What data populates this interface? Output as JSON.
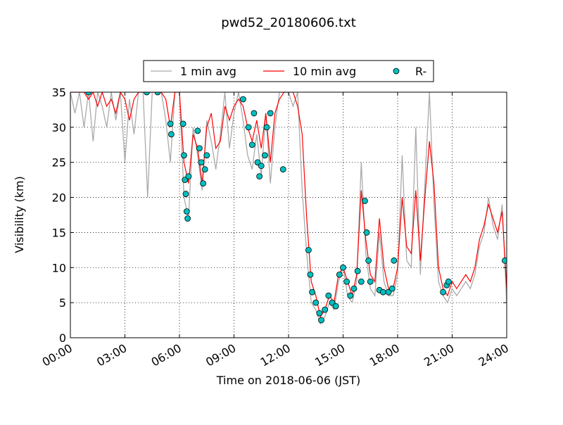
{
  "chart_data": {
    "type": "line",
    "title": "pwd52_20180606.txt",
    "x_label": "Time on 2018-06-06 (JST)",
    "y_label": "Visibility (km)",
    "xlim": [
      0,
      24
    ],
    "ylim": [
      0,
      35
    ],
    "xticks": [
      {
        "value": 0,
        "label": "00:00"
      },
      {
        "value": 3,
        "label": "03:00"
      },
      {
        "value": 6,
        "label": "06:00"
      },
      {
        "value": 9,
        "label": "09:00"
      },
      {
        "value": 12,
        "label": "12:00"
      },
      {
        "value": 15,
        "label": "15:00"
      },
      {
        "value": 18,
        "label": "18:00"
      },
      {
        "value": 21,
        "label": "21:00"
      },
      {
        "value": 24,
        "label": "24:00"
      }
    ],
    "yticks": [
      0,
      5,
      10,
      15,
      20,
      25,
      30,
      35
    ],
    "grid": true,
    "legend": "top-center-outside",
    "series": [
      {
        "name": "1 min avg",
        "type": "line",
        "color": "#aaaaaa",
        "x": [
          0,
          0.25,
          0.5,
          0.75,
          1,
          1.25,
          1.5,
          1.75,
          2,
          2.25,
          2.5,
          2.75,
          3,
          3.25,
          3.5,
          3.75,
          4,
          4.25,
          4.5,
          4.75,
          5,
          5.25,
          5.5,
          5.75,
          6,
          6.25,
          6.5,
          6.75,
          7,
          7.25,
          7.5,
          7.75,
          8,
          8.25,
          8.5,
          8.75,
          9,
          9.25,
          9.5,
          9.75,
          10,
          10.25,
          10.5,
          10.75,
          11,
          11.25,
          11.5,
          11.75,
          12,
          12.25,
          12.5,
          12.75,
          13,
          13.25,
          13.5,
          13.75,
          14,
          14.25,
          14.5,
          14.75,
          15,
          15.25,
          15.5,
          15.75,
          16,
          16.25,
          16.5,
          16.75,
          17,
          17.25,
          17.5,
          17.75,
          18,
          18.25,
          18.5,
          18.75,
          19,
          19.25,
          19.5,
          19.75,
          20,
          20.25,
          20.5,
          20.75,
          21,
          21.25,
          21.5,
          21.75,
          22,
          22.25,
          22.5,
          22.75,
          23,
          23.25,
          23.5,
          23.75,
          24
        ],
        "values": [
          35,
          32,
          35,
          30,
          35,
          28,
          35,
          33,
          30,
          35,
          31,
          35,
          25,
          34,
          29,
          35,
          35,
          20,
          35,
          35,
          35,
          31,
          25,
          35,
          35,
          20,
          17,
          30,
          26,
          21,
          31,
          28,
          24,
          29,
          35,
          27,
          32,
          35,
          31,
          26,
          24,
          29,
          23,
          32,
          22,
          30,
          35,
          35,
          35,
          33,
          35,
          21,
          12,
          5,
          4,
          2,
          3,
          5,
          4,
          8,
          10,
          6,
          5,
          8,
          25,
          12,
          7,
          6,
          15,
          8,
          6,
          6,
          9,
          26,
          11,
          10,
          30,
          9,
          22,
          35,
          19,
          8,
          6,
          5,
          7,
          6,
          7,
          8,
          7,
          9,
          13,
          15,
          20,
          16,
          14,
          19,
          5
        ]
      },
      {
        "name": "10 min avg",
        "type": "line",
        "color": "#ff0000",
        "x": [
          0,
          0.25,
          0.5,
          0.75,
          1,
          1.25,
          1.5,
          1.75,
          2,
          2.25,
          2.5,
          2.75,
          3,
          3.25,
          3.5,
          3.75,
          4,
          4.25,
          4.5,
          4.75,
          5,
          5.25,
          5.5,
          5.75,
          6,
          6.25,
          6.5,
          6.75,
          7,
          7.25,
          7.5,
          7.75,
          8,
          8.25,
          8.5,
          8.75,
          9,
          9.25,
          9.5,
          9.75,
          10,
          10.25,
          10.5,
          10.75,
          11,
          11.25,
          11.5,
          11.75,
          12,
          12.25,
          12.5,
          12.75,
          13,
          13.25,
          13.5,
          13.75,
          14,
          14.25,
          14.5,
          14.75,
          15,
          15.25,
          15.5,
          15.75,
          16,
          16.25,
          16.5,
          16.75,
          17,
          17.25,
          17.5,
          17.75,
          18,
          18.25,
          18.5,
          18.75,
          19,
          19.25,
          19.5,
          19.75,
          20,
          20.25,
          20.5,
          20.75,
          21,
          21.25,
          21.5,
          21.75,
          22,
          22.25,
          22.5,
          22.75,
          23,
          23.25,
          23.5,
          23.75,
          24
        ],
        "values": [
          35,
          35,
          35,
          35,
          34,
          35,
          33,
          35,
          33,
          34,
          32,
          35,
          34,
          31,
          34,
          35,
          35,
          35,
          35,
          35,
          35,
          34,
          30,
          35,
          35,
          25,
          22,
          29,
          27,
          22,
          30,
          32,
          27,
          28,
          33,
          31,
          33,
          34,
          33,
          30,
          28,
          31,
          27,
          32,
          25,
          32,
          34,
          35,
          35,
          35,
          33,
          29,
          17,
          8,
          6,
          3,
          4,
          6,
          5,
          9,
          10,
          8,
          6,
          9,
          21,
          14,
          9,
          8,
          17,
          10,
          7,
          7,
          10,
          20,
          13,
          12,
          21,
          11,
          20,
          28,
          22,
          10,
          7,
          6,
          8,
          7,
          8,
          9,
          8,
          10,
          14,
          16,
          19,
          17,
          15,
          18,
          7
        ]
      },
      {
        "name": "R-",
        "type": "scatter",
        "color": "#00bfbf",
        "x": [
          1.0,
          4.2,
          4.8,
          5.5,
          5.55,
          6.2,
          6.25,
          6.3,
          6.35,
          6.4,
          6.45,
          6.5,
          7.0,
          7.1,
          7.2,
          7.3,
          7.4,
          7.5,
          9.5,
          9.8,
          10.0,
          10.1,
          10.3,
          10.4,
          10.5,
          10.7,
          10.8,
          11.0,
          11.7,
          13.1,
          13.2,
          13.3,
          13.5,
          13.7,
          13.8,
          14.0,
          14.2,
          14.4,
          14.6,
          14.8,
          15.0,
          15.2,
          15.4,
          15.6,
          15.8,
          16.0,
          16.2,
          16.3,
          16.4,
          16.5,
          17.0,
          17.2,
          17.5,
          17.7,
          17.8,
          20.5,
          20.7,
          20.8,
          23.9
        ],
        "values": [
          35,
          35,
          35,
          30.5,
          29,
          30.5,
          26,
          22.5,
          20.5,
          18,
          17,
          23,
          29.5,
          27,
          25,
          22,
          24,
          26,
          34,
          30,
          27.5,
          32,
          25,
          23,
          24.5,
          26,
          30,
          32,
          24,
          12.5,
          9,
          6.5,
          5,
          3.5,
          2.5,
          4,
          6,
          5,
          4.5,
          9,
          10,
          8,
          6,
          7,
          9.5,
          8,
          19.5,
          15,
          11,
          8,
          6.8,
          6.5,
          6.5,
          7,
          11,
          6.5,
          7.5,
          8,
          11
        ]
      }
    ]
  }
}
